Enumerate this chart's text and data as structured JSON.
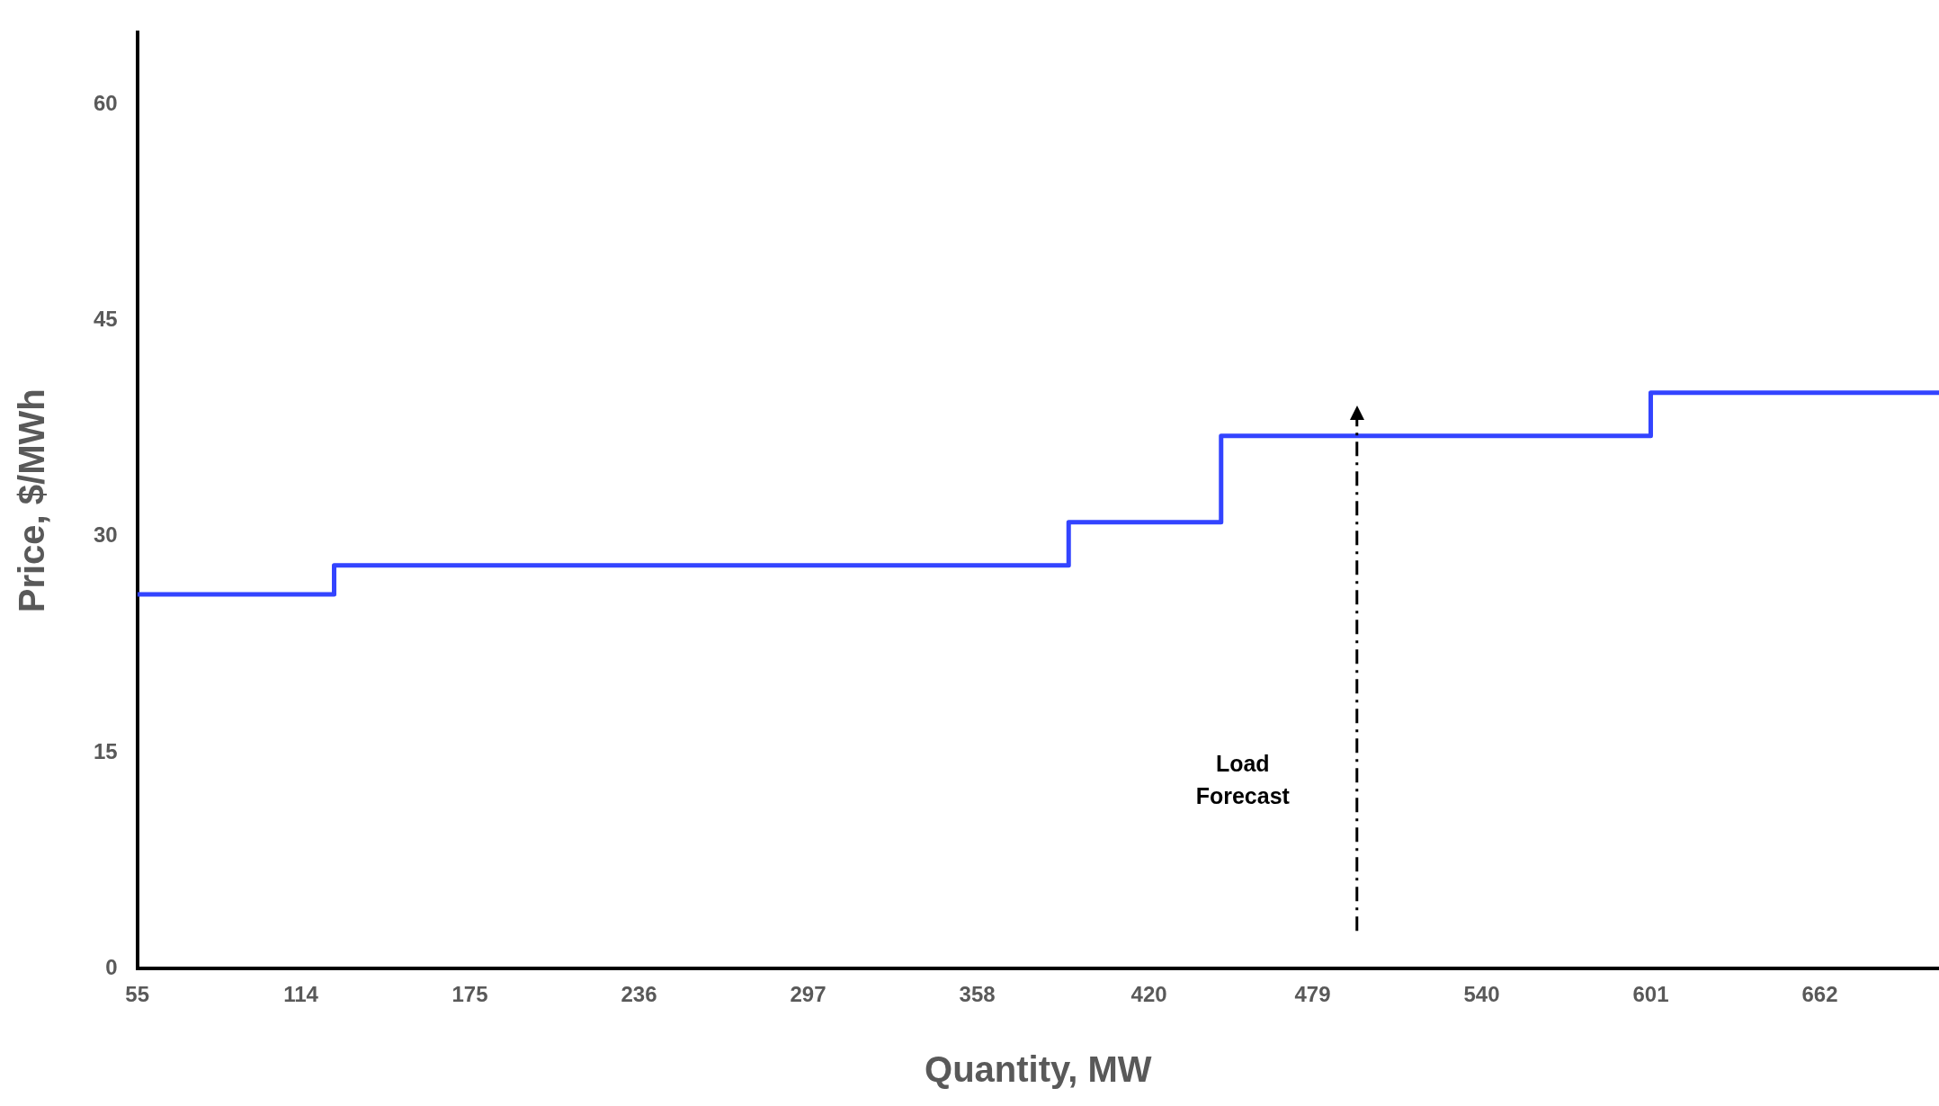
{
  "chart_data": {
    "type": "step",
    "xlabel": "Quantity, MW",
    "ylabel": "Price, $/MWh",
    "x": [
      55,
      126,
      391,
      446,
      601,
      705
    ],
    "series": [
      {
        "color": "#3344ff",
        "values": [
          26,
          28,
          31,
          37,
          40,
          40
        ]
      }
    ],
    "xlim": [
      55,
      705
    ],
    "xticks": [
      55,
      114,
      175,
      236,
      297,
      358,
      420,
      479,
      540,
      601,
      662
    ],
    "ylim": [
      0,
      65
    ],
    "yticks": [
      0,
      15,
      30,
      45,
      60
    ],
    "grid": false,
    "legend": false,
    "marker": "none",
    "line_style": "solid",
    "ref_lines": [
      {
        "axis": "x",
        "value": 495,
        "label": "Load Forecast",
        "color": "#000000",
        "line_style": "dashdot"
      }
    ]
  }
}
